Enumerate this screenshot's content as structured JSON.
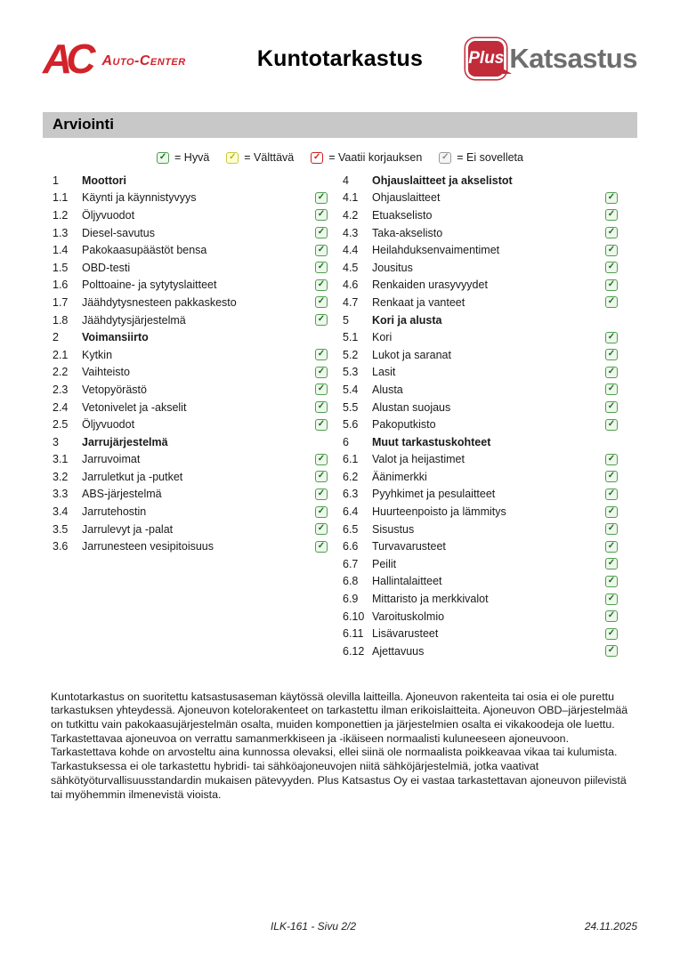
{
  "colors": {
    "brand_red": "#d2222a",
    "plus_red": "#c12b3a",
    "katsastus_gray": "#6e6e6e",
    "bar_gray": "#c8c8c8",
    "good_border": "#4f9e4f",
    "good_fill": "#eef7ec",
    "good_check": "#17701c",
    "fair_border": "#c9c93e",
    "fair_fill": "#ffffcf",
    "fair_check": "#b0b030",
    "repair_border": "#cf1f1f",
    "repair_fill": "#ffffff",
    "repair_check": "#cf1f1f",
    "na_border": "#9a9a9a",
    "na_fill": "#f5f5f5",
    "na_check": "#8a8a8a"
  },
  "header": {
    "auto_center_abbr": "AC",
    "auto_center_name": "Auto-Center",
    "title": "Kuntotarkastus",
    "plus_badge": "Plus",
    "plus_name": "Katsastus"
  },
  "section_title": "Arviointi",
  "legend": [
    {
      "state": "good",
      "label": "= Hyvä"
    },
    {
      "state": "fair",
      "label": "= Välttävä"
    },
    {
      "state": "repair",
      "label": "= Vaatii korjauksen"
    },
    {
      "state": "na",
      "label": "= Ei sovelleta"
    }
  ],
  "checklist": {
    "left": [
      {
        "num": "1",
        "label": "Moottori",
        "header": true
      },
      {
        "num": "1.1",
        "label": "Käynti ja käynnistyvyys",
        "status": "good"
      },
      {
        "num": "1.2",
        "label": "Öljyvuodot",
        "status": "good"
      },
      {
        "num": "1.3",
        "label": "Diesel-savutus",
        "status": "good"
      },
      {
        "num": "1.4",
        "label": "Pakokaasupäästöt bensa",
        "status": "good"
      },
      {
        "num": "1.5",
        "label": "OBD-testi",
        "status": "good"
      },
      {
        "num": "1.6",
        "label": "Polttoaine- ja sytytyslaitteet",
        "status": "good"
      },
      {
        "num": "1.7",
        "label": "Jäähdytysnesteen pakkaskesto",
        "status": "good"
      },
      {
        "num": "1.8",
        "label": "Jäähdytysjärjestelmä",
        "status": "good"
      },
      {
        "num": "2",
        "label": "Voimansiirto",
        "header": true
      },
      {
        "num": "2.1",
        "label": "Kytkin",
        "status": "good"
      },
      {
        "num": "2.2",
        "label": "Vaihteisto",
        "status": "good"
      },
      {
        "num": "2.3",
        "label": "Vetopyörästö",
        "status": "good"
      },
      {
        "num": "2.4",
        "label": "Vetonivelet ja -akselit",
        "status": "good"
      },
      {
        "num": "2.5",
        "label": "Öljyvuodot",
        "status": "good"
      },
      {
        "num": "3",
        "label": "Jarrujärjestelmä",
        "header": true
      },
      {
        "num": "3.1",
        "label": "Jarruvoimat",
        "status": "good"
      },
      {
        "num": "3.2",
        "label": "Jarruletkut ja -putket",
        "status": "good"
      },
      {
        "num": "3.3",
        "label": "ABS-järjestelmä",
        "status": "good"
      },
      {
        "num": "3.4",
        "label": "Jarrutehostin",
        "status": "good"
      },
      {
        "num": "3.5",
        "label": "Jarrulevyt ja -palat",
        "status": "good"
      },
      {
        "num": "3.6",
        "label": "Jarrunesteen vesipitoisuus",
        "status": "good"
      }
    ],
    "right": [
      {
        "num": "4",
        "label": "Ohjauslaitteet ja akselistot",
        "header": true
      },
      {
        "num": "4.1",
        "label": "Ohjauslaitteet",
        "status": "good"
      },
      {
        "num": "4.2",
        "label": "Etuakselisto",
        "status": "good"
      },
      {
        "num": "4.3",
        "label": "Taka-akselisto",
        "status": "good"
      },
      {
        "num": "4.4",
        "label": "Heilahduksenvaimentimet",
        "status": "good"
      },
      {
        "num": "4.5",
        "label": "Jousitus",
        "status": "good"
      },
      {
        "num": "4.6",
        "label": "Renkaiden urasyvyydet",
        "status": "good"
      },
      {
        "num": "4.7",
        "label": "Renkaat ja vanteet",
        "status": "good"
      },
      {
        "num": "5",
        "label": "Kori ja alusta",
        "header": true
      },
      {
        "num": "5.1",
        "label": "Kori",
        "status": "good"
      },
      {
        "num": "5.2",
        "label": "Lukot ja saranat",
        "status": "good"
      },
      {
        "num": "5.3",
        "label": "Lasit",
        "status": "good"
      },
      {
        "num": "5.4",
        "label": "Alusta",
        "status": "good"
      },
      {
        "num": "5.5",
        "label": "Alustan suojaus",
        "status": "good"
      },
      {
        "num": "5.6",
        "label": "Pakoputkisto",
        "status": "good"
      },
      {
        "num": "6",
        "label": "Muut tarkastuskohteet",
        "header": true
      },
      {
        "num": "6.1",
        "label": "Valot ja heijastimet",
        "status": "good"
      },
      {
        "num": "6.2",
        "label": "Äänimerkki",
        "status": "good"
      },
      {
        "num": "6.3",
        "label": "Pyyhkimet ja pesulaitteet",
        "status": "good"
      },
      {
        "num": "6.4",
        "label": "Huurteenpoisto ja lämmitys",
        "status": "good"
      },
      {
        "num": "6.5",
        "label": "Sisustus",
        "status": "good"
      },
      {
        "num": "6.6",
        "label": "Turvavarusteet",
        "status": "good"
      },
      {
        "num": "6.7",
        "label": "Peilit",
        "status": "good"
      },
      {
        "num": "6.8",
        "label": "Hallintalaitteet",
        "status": "good"
      },
      {
        "num": "6.9",
        "label": "Mittaristo ja merkkivalot",
        "status": "good"
      },
      {
        "num": "6.10",
        "label": "Varoituskolmio",
        "status": "good"
      },
      {
        "num": "6.11",
        "label": "Lisävarusteet",
        "status": "good"
      },
      {
        "num": "6.12",
        "label": "Ajettavuus",
        "status": "good"
      }
    ]
  },
  "disclaimer": "Kuntotarkastus on suoritettu katsastusaseman käytössä olevilla laitteilla. Ajoneuvon rakenteita tai osia ei ole purettu tarkastuksen yhteydessä. Ajoneuvon kotelorakenteet on tarkastettu ilman erikoislaitteita. Ajoneuvon OBD–järjestelmää on tutkittu vain pakokaasujärjestelmän osalta, muiden komponettien ja järjestelmien osalta ei vikakoodeja ole luettu. Tarkastettavaa ajoneuvoa on verrattu samanmerkkiseen ja -ikäiseen normaalisti kuluneeseen ajoneuvoon. Tarkastettava kohde on arvosteltu aina kunnossa olevaksi, ellei siinä ole normaalista poikkeavaa vikaa tai kulumista. Tarkastuksessa ei ole tarkastettu hybridi- tai sähköajoneuvojen niitä sähköjärjestelmiä, jotka vaativat sähkötyöturvallisuusstandardin mukaisen pätevyyden. Plus Katsastus Oy ei vastaa tarkastettavan ajoneuvon piilevistä tai myöhemmin ilmenevistä vioista.",
  "footer": {
    "doc_page": "ILK-161 - Sivu 2/2",
    "date": "24.11.2025"
  }
}
